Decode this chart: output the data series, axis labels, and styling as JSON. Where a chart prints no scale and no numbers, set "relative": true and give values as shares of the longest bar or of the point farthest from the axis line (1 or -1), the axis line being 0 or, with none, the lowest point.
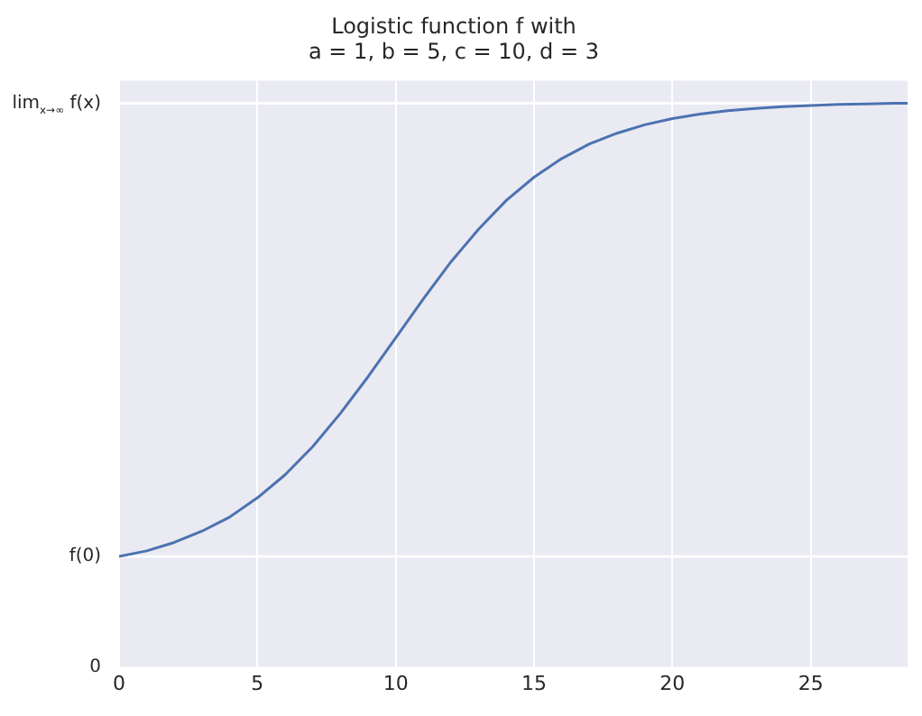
{
  "chart_data": {
    "type": "line",
    "title": "Logistic function f with\na = 1, b = 5, c = 10, d = 3",
    "relative": true,
    "x": [
      0,
      1,
      2,
      3,
      4,
      5,
      6,
      7,
      8,
      9,
      10,
      11,
      12,
      13,
      14,
      15,
      16,
      17,
      18,
      19,
      20,
      21,
      22,
      23,
      24,
      25,
      26,
      27,
      28,
      28.5
    ],
    "series": [
      {
        "color": "#4c72b0",
        "values": [
          0.196,
          0.206,
          0.221,
          0.241,
          0.266,
          0.3,
          0.341,
          0.391,
          0.45,
          0.515,
          0.584,
          0.653,
          0.719,
          0.777,
          0.828,
          0.869,
          0.902,
          0.928,
          0.947,
          0.962,
          0.973,
          0.981,
          0.987,
          0.991,
          0.994,
          0.996,
          0.998,
          0.999,
          1,
          1
        ]
      }
    ],
    "annotations": [
      "0"
    ],
    "xlim": [
      0,
      28.5
    ],
    "xticks": [
      0,
      5,
      10,
      15,
      20,
      25
    ],
    "ref_lines": [
      {
        "axis": "y",
        "value": 0.196,
        "label": "f(0)",
        "color": "#ffffff"
      },
      {
        "axis": "y",
        "value": 1,
        "label": "lim$_{x→∞}$ f(x)",
        "color": "#ffffff"
      }
    ],
    "grid": "x",
    "legend": false,
    "marker": "none",
    "line_style": "solid"
  }
}
